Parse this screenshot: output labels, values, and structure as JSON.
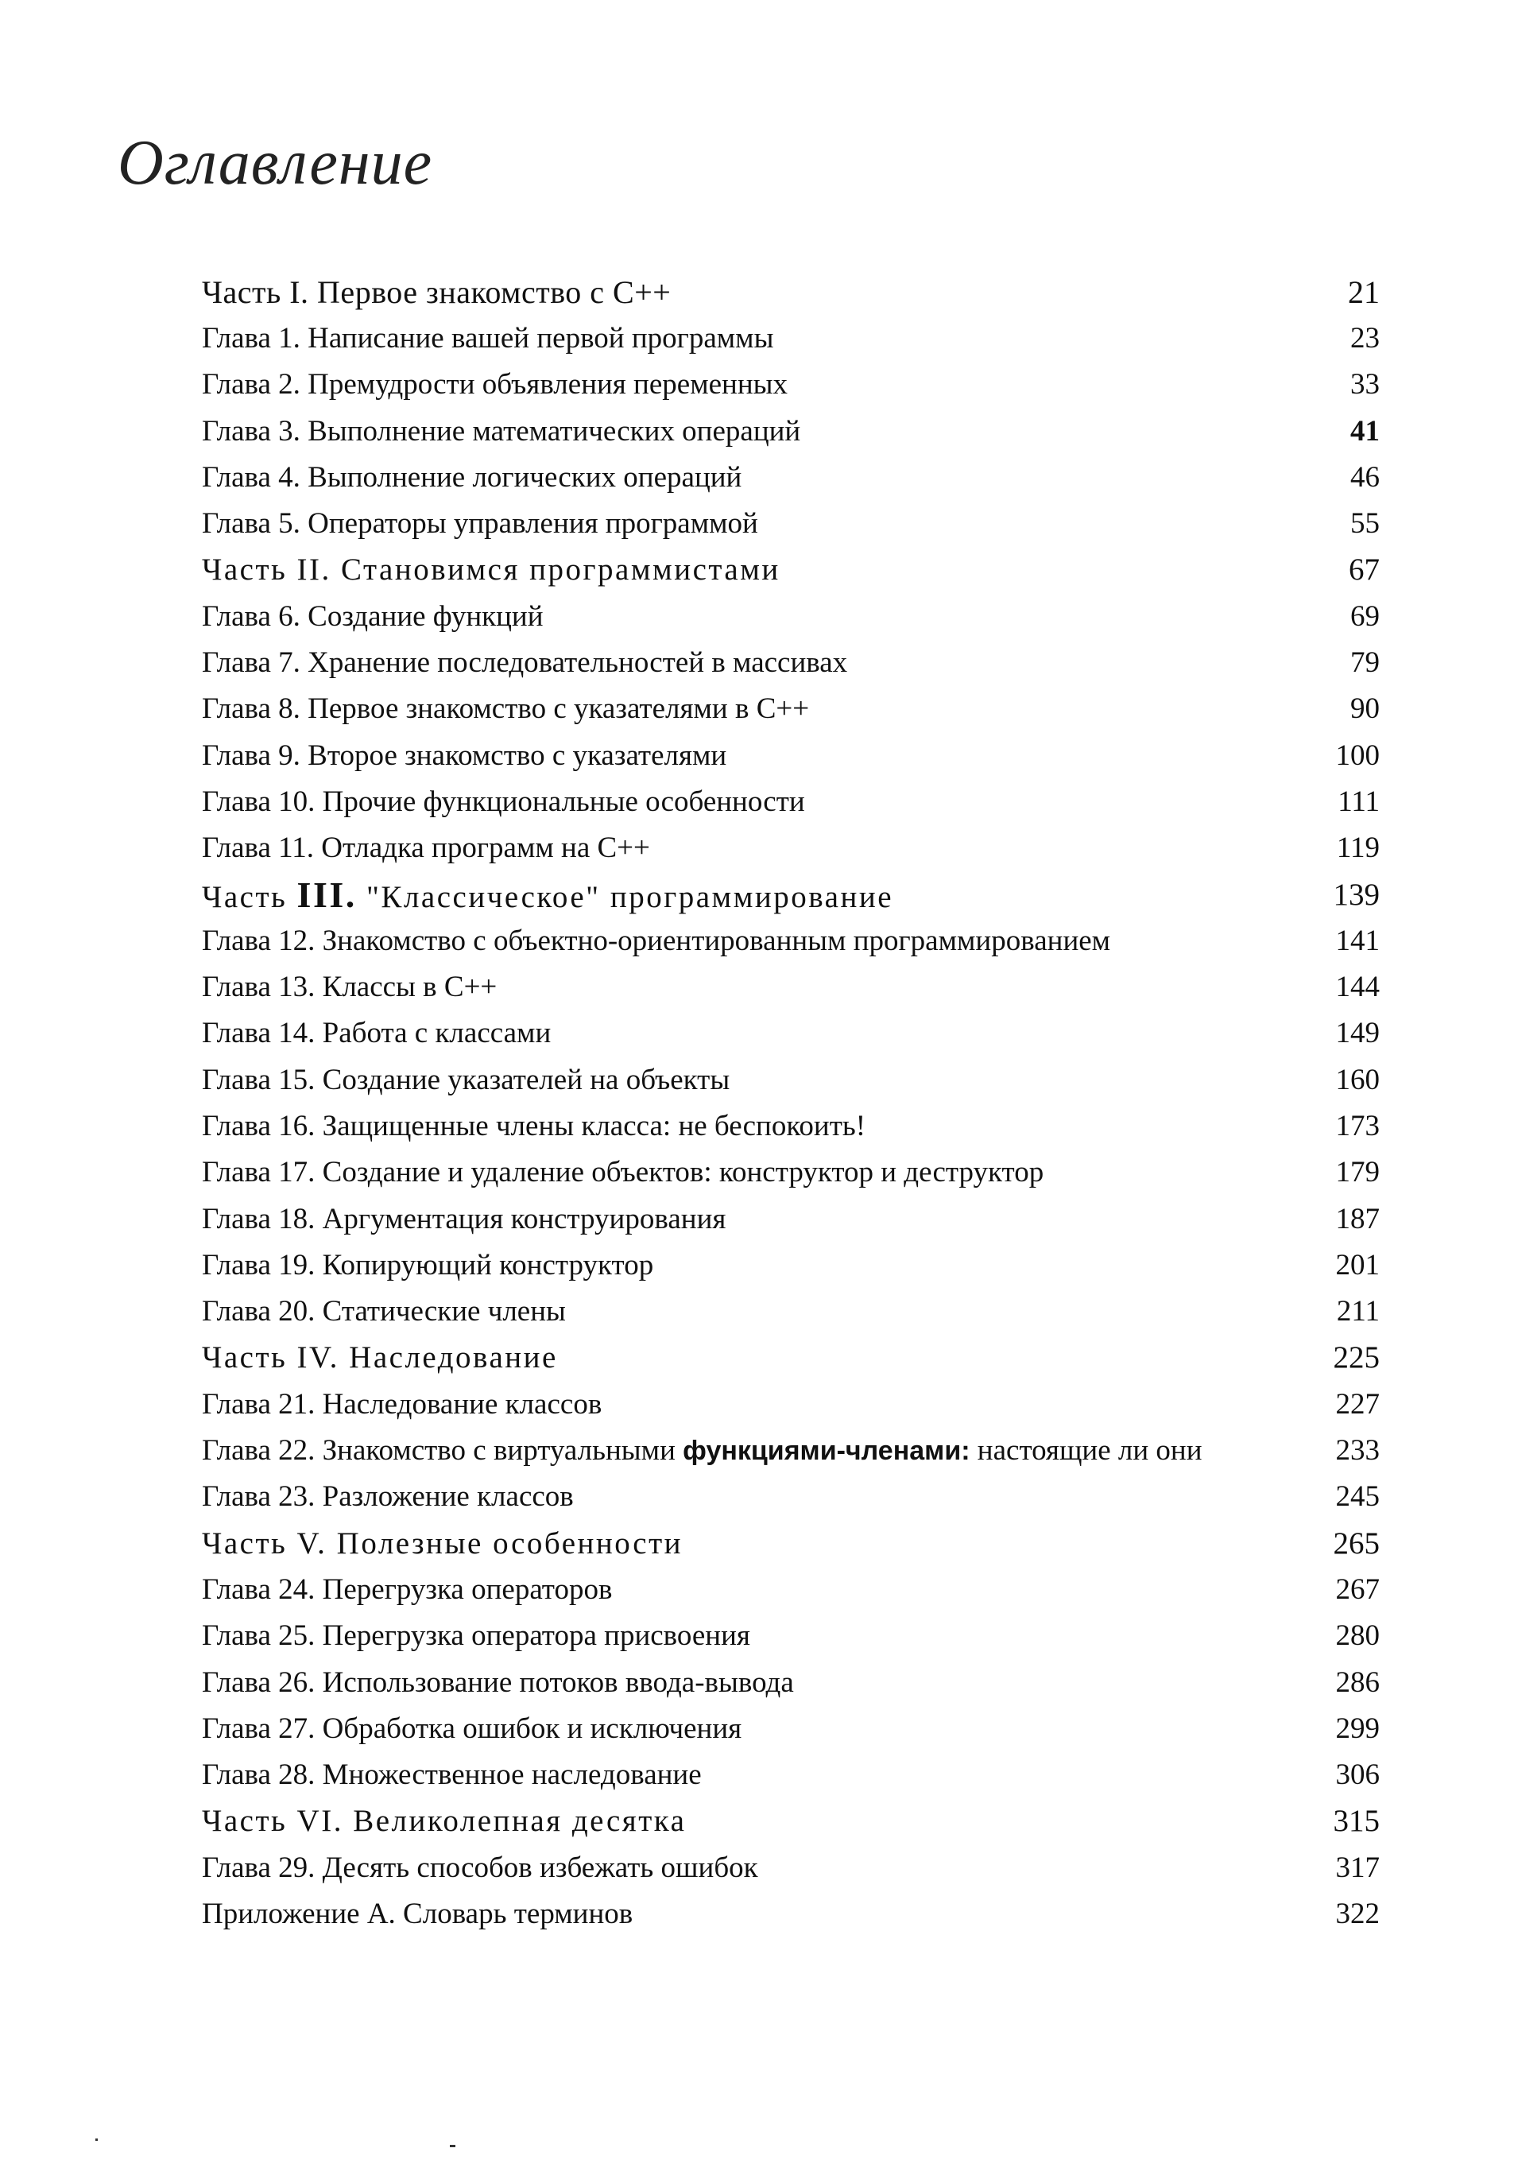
{
  "title": "Оглавление",
  "entries": [
    {
      "kind": "part",
      "segments": [
        {
          "text": "Часть I. Первое знакомство с С++"
        }
      ],
      "page": "21"
    },
    {
      "kind": "chapter",
      "segments": [
        {
          "text": "Глава 1. Написание вашей первой программы"
        }
      ],
      "page": "23"
    },
    {
      "kind": "chapter",
      "segments": [
        {
          "text": "Глава 2. Премудрости объявления переменных"
        }
      ],
      "page": "33"
    },
    {
      "kind": "chapter",
      "segments": [
        {
          "text": "Глава 3. Выполнение математических операций"
        }
      ],
      "page": "41",
      "page_bold": true
    },
    {
      "kind": "chapter",
      "segments": [
        {
          "text": "Глава 4. Выполнение логических операций"
        }
      ],
      "page": "46"
    },
    {
      "kind": "chapter",
      "segments": [
        {
          "text": "Глава 5. Операторы управления программой"
        }
      ],
      "page": "55"
    },
    {
      "kind": "part",
      "segments": [
        {
          "text": "Часть II. Становимся программистами"
        }
      ],
      "page": "67"
    },
    {
      "kind": "chapter",
      "segments": [
        {
          "text": "Глава 6. Создание функций"
        }
      ],
      "page": "69"
    },
    {
      "kind": "chapter",
      "segments": [
        {
          "text": "Глава 7. Хранение последовательностей в массивах"
        }
      ],
      "page": "79"
    },
    {
      "kind": "chapter",
      "segments": [
        {
          "text": "Глава 8. Первое знакомство с указателями в С++"
        }
      ],
      "page": "90"
    },
    {
      "kind": "chapter",
      "segments": [
        {
          "text": "Глава 9. Второе знакомство с указателями"
        }
      ],
      "page": "100"
    },
    {
      "kind": "chapter",
      "segments": [
        {
          "text": "Глава 10. Прочие функциональные особенности"
        }
      ],
      "page": "111"
    },
    {
      "kind": "chapter",
      "segments": [
        {
          "text": "Глава 11. Отладка программ на С++"
        }
      ],
      "page": "119"
    },
    {
      "kind": "part",
      "segments": [
        {
          "text": "Часть "
        },
        {
          "text": "III.",
          "emphasis": "boldlarge"
        },
        {
          "text": " \"Классическое\" программирование"
        }
      ],
      "page": "139"
    },
    {
      "kind": "chapter",
      "segments": [
        {
          "text": "Глава 12. Знакомство с объектно-ориентированным программированием"
        }
      ],
      "page": "141"
    },
    {
      "kind": "chapter",
      "segments": [
        {
          "text": "Глава 13. Классы в С++"
        }
      ],
      "page": "144"
    },
    {
      "kind": "chapter",
      "segments": [
        {
          "text": "Глава 14. Работа с классами"
        }
      ],
      "page": "149"
    },
    {
      "kind": "chapter",
      "segments": [
        {
          "text": "Глава 15. Создание указателей на объекты"
        }
      ],
      "page": "160"
    },
    {
      "kind": "chapter",
      "segments": [
        {
          "text": "Глава 16. Защищенные члены класса: не беспокоить!"
        }
      ],
      "page": "173"
    },
    {
      "kind": "chapter",
      "segments": [
        {
          "text": "Глава 17. Создание и удаление объектов: конструктор и деструктор"
        }
      ],
      "page": "179"
    },
    {
      "kind": "chapter",
      "segments": [
        {
          "text": "Глава 18. Аргументация конструирования"
        }
      ],
      "page": "187"
    },
    {
      "kind": "chapter",
      "segments": [
        {
          "text": "Глава 19. Копирующий конструктор"
        }
      ],
      "page": "201"
    },
    {
      "kind": "chapter",
      "segments": [
        {
          "text": "Глава 20. Статические члены"
        }
      ],
      "page": "211"
    },
    {
      "kind": "part",
      "segments": [
        {
          "text": "Часть IV. Наследование"
        }
      ],
      "page": "225"
    },
    {
      "kind": "chapter",
      "segments": [
        {
          "text": "Глава 21. Наследование классов"
        }
      ],
      "page": "227"
    },
    {
      "kind": "chapter",
      "segments": [
        {
          "text": "Глава 22. Знакомство с виртуальными "
        },
        {
          "text": "функциями-членами:",
          "emphasis": "boldsans"
        },
        {
          "text": " настоящие ли они"
        }
      ],
      "page": "233"
    },
    {
      "kind": "chapter",
      "segments": [
        {
          "text": "Глава 23. Разложение классов"
        }
      ],
      "page": "245"
    },
    {
      "kind": "part",
      "segments": [
        {
          "text": "Часть V. Полезные особенности"
        }
      ],
      "page": "265"
    },
    {
      "kind": "chapter",
      "segments": [
        {
          "text": "Глава 24. Перегрузка операторов"
        }
      ],
      "page": "267"
    },
    {
      "kind": "chapter",
      "segments": [
        {
          "text": "Глава 25. Перегрузка оператора присвоения"
        }
      ],
      "page": "280"
    },
    {
      "kind": "chapter",
      "segments": [
        {
          "text": "Глава 26. Использование потоков ввода-вывода"
        }
      ],
      "page": "286"
    },
    {
      "kind": "chapter",
      "segments": [
        {
          "text": "Глава 27. Обработка ошибок и исключения"
        }
      ],
      "page": "299"
    },
    {
      "kind": "chapter",
      "segments": [
        {
          "text": "Глава 28. Множественное наследование"
        }
      ],
      "page": "306"
    },
    {
      "kind": "part",
      "segments": [
        {
          "text": "Часть VI. Великолепная десятка"
        }
      ],
      "page": "315"
    },
    {
      "kind": "chapter",
      "segments": [
        {
          "text": "Глава 29. Десять способов избежать ошибок"
        }
      ],
      "page": "317"
    },
    {
      "kind": "chapter",
      "segments": [
        {
          "text": "Приложение А. Словарь терминов"
        }
      ],
      "page": "322"
    }
  ]
}
